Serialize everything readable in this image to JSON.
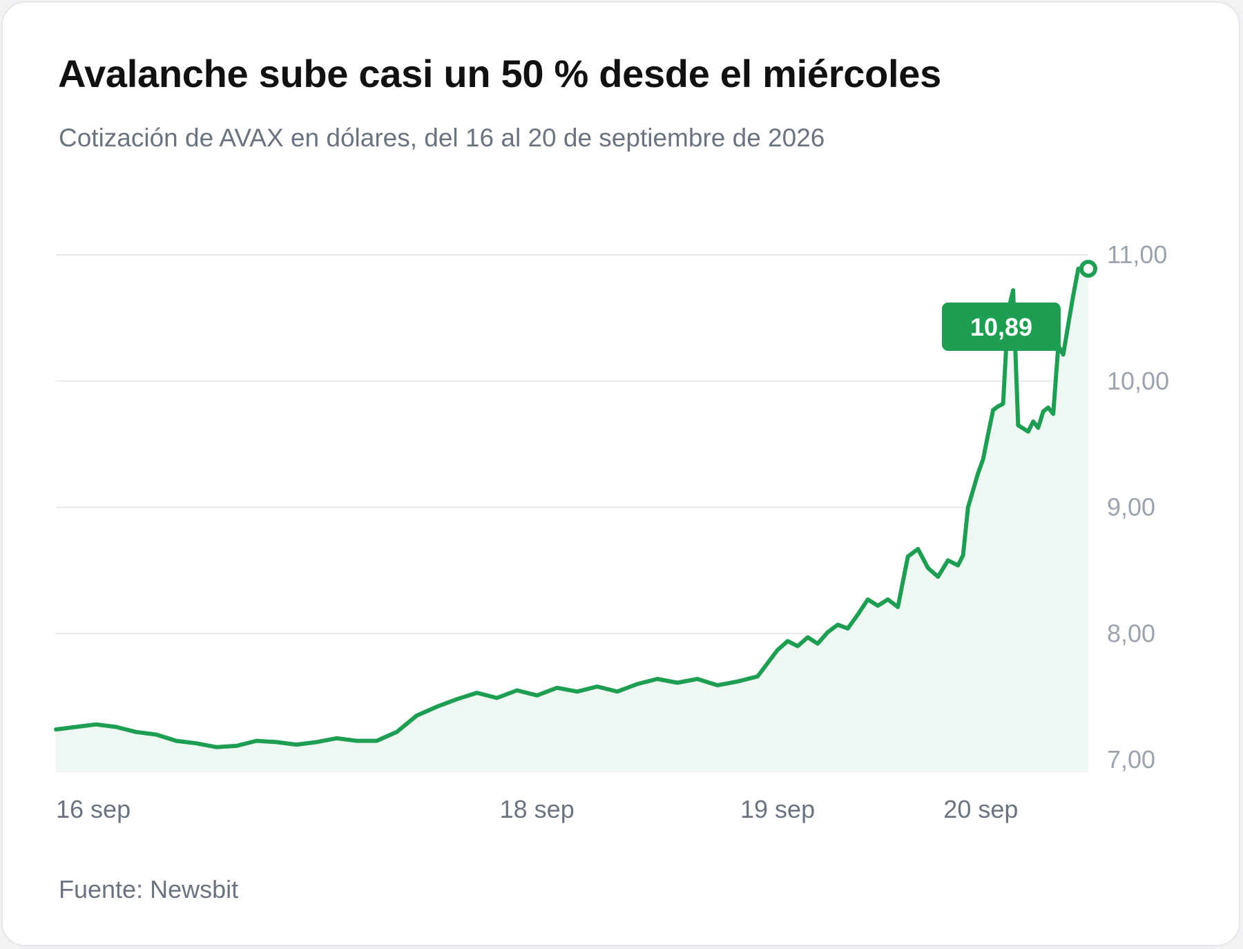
{
  "header": {
    "title": "Avalanche sube casi un 50 % desde el miércoles",
    "subtitle": "Cotización de AVAX en dólares, del 16 al 20 de septiembre de 2026"
  },
  "footer": {
    "source_prefix": "Fuente: ",
    "source_name": "Newsbit"
  },
  "colors": {
    "line": "#1e9e52",
    "area": "#eef7f1",
    "grid": "#e6e8eb",
    "callout_bg": "#1e9e52"
  },
  "chart_data": {
    "type": "area",
    "title": "Avalanche sube casi un 50 % desde el miércoles",
    "subtitle": "Cotización de AVAX en dólares, del 16 al 20 de septiembre de 2026",
    "ylim": [
      7.0,
      11.0
    ],
    "y_ticks": [
      7,
      8,
      9,
      10,
      11
    ],
    "y_tick_labels": [
      "7,00",
      "8,00",
      "9,00",
      "10,00",
      "11,00"
    ],
    "xlim": [
      "2026-09-16T00:00",
      "2026-09-20T07:00"
    ],
    "x_ticks": [
      {
        "date": "2026-09-16T00:00",
        "label": "16 sep"
      },
      {
        "date": "2026-09-18T00:00",
        "label": "18 sep"
      },
      {
        "date": "2026-09-19T00:00",
        "label": "19 sep"
      },
      {
        "date": "2026-09-20T00:00",
        "label": "20 sep"
      }
    ],
    "grid": true,
    "legend": "none",
    "last_value_label": "10,89",
    "series": [
      {
        "x": [
          "2026-09-16T00:00",
          "2026-09-16T02:00",
          "2026-09-16T04:00",
          "2026-09-16T06:00",
          "2026-09-16T08:00",
          "2026-09-16T10:00",
          "2026-09-16T12:00",
          "2026-09-16T14:00",
          "2026-09-16T16:00",
          "2026-09-16T18:00",
          "2026-09-16T20:00",
          "2026-09-16T22:00",
          "2026-09-17T00:00",
          "2026-09-17T02:00",
          "2026-09-17T04:00",
          "2026-09-17T06:00",
          "2026-09-17T08:00",
          "2026-09-17T10:00",
          "2026-09-17T12:00",
          "2026-09-17T14:00",
          "2026-09-17T16:00",
          "2026-09-17T18:00",
          "2026-09-17T20:00",
          "2026-09-17T22:00",
          "2026-09-18T00:00",
          "2026-09-18T02:00",
          "2026-09-18T04:00",
          "2026-09-18T06:00",
          "2026-09-18T08:00",
          "2026-09-18T10:00",
          "2026-09-18T12:00",
          "2026-09-18T14:00",
          "2026-09-18T16:00",
          "2026-09-18T18:00",
          "2026-09-18T20:00",
          "2026-09-18T22:00",
          "2026-09-19T00:00",
          "2026-09-19T01:00",
          "2026-09-19T02:00",
          "2026-09-19T03:00",
          "2026-09-19T04:00",
          "2026-09-19T05:00",
          "2026-09-19T06:00",
          "2026-09-19T07:00",
          "2026-09-19T08:00",
          "2026-09-19T09:00",
          "2026-09-19T10:00",
          "2026-09-19T11:00",
          "2026-09-19T12:00",
          "2026-09-19T13:00",
          "2026-09-19T14:00",
          "2026-09-19T15:00",
          "2026-09-19T16:00",
          "2026-09-19T17:00",
          "2026-09-19T18:00",
          "2026-09-19T18:30",
          "2026-09-19T19:00",
          "2026-09-19T20:00",
          "2026-09-19T20:30",
          "2026-09-19T21:00",
          "2026-09-19T21:30",
          "2026-09-19T22:00",
          "2026-09-19T22:30",
          "2026-09-19T23:00",
          "2026-09-19T23:30",
          "2026-09-20T00:00",
          "2026-09-20T01:00",
          "2026-09-20T01:30",
          "2026-09-20T02:00",
          "2026-09-20T02:30",
          "2026-09-20T03:00",
          "2026-09-20T03:30",
          "2026-09-20T04:00",
          "2026-09-20T04:30",
          "2026-09-20T05:00",
          "2026-09-20T05:30",
          "2026-09-20T06:00",
          "2026-09-20T07:00"
        ],
        "values": [
          7.24,
          7.26,
          7.28,
          7.26,
          7.22,
          7.2,
          7.15,
          7.13,
          7.1,
          7.11,
          7.15,
          7.14,
          7.12,
          7.14,
          7.17,
          7.15,
          7.15,
          7.22,
          7.35,
          7.42,
          7.48,
          7.53,
          7.49,
          7.55,
          7.51,
          7.57,
          7.54,
          7.58,
          7.54,
          7.6,
          7.64,
          7.61,
          7.64,
          7.59,
          7.62,
          7.66,
          7.87,
          7.94,
          7.9,
          7.97,
          7.92,
          8.01,
          8.07,
          8.04,
          8.15,
          8.27,
          8.22,
          8.27,
          8.21,
          8.61,
          8.67,
          8.52,
          8.45,
          8.58,
          8.54,
          8.62,
          9.0,
          9.27,
          9.38,
          9.58,
          9.77,
          9.8,
          9.82,
          10.55,
          10.72,
          9.65,
          9.6,
          9.68,
          9.63,
          9.76,
          9.79,
          9.74,
          10.28,
          10.21,
          10.45,
          10.68,
          10.89,
          10.89
        ]
      }
    ]
  }
}
